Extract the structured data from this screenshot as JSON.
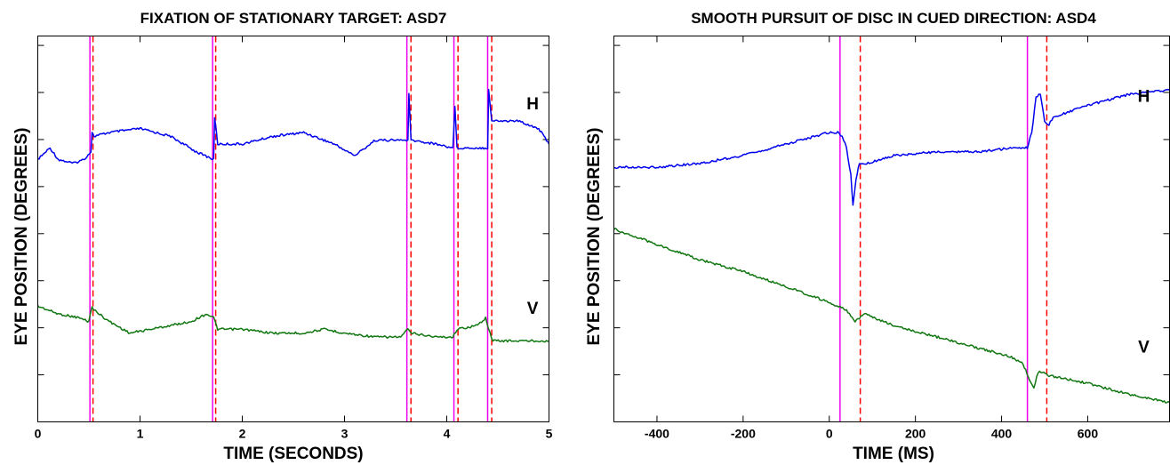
{
  "chart_data": [
    {
      "type": "line",
      "title": "FIXATION OF STATIONARY TARGET:  ASD7",
      "xlabel": "TIME (SECONDS)",
      "ylabel": "EYE POSITION (DEGREES)",
      "xlim": [
        0,
        5
      ],
      "ylim": [
        0,
        100
      ],
      "xticks": [
        0,
        1,
        2,
        3,
        4,
        5
      ],
      "xtick_labels": [
        "0",
        "1",
        "2",
        "3",
        "4",
        "5"
      ],
      "y_tick_count": 8,
      "grid": false,
      "series": [
        {
          "name": "H",
          "color": "#0000ee",
          "x": [
            0,
            0.12,
            0.2,
            0.35,
            0.45,
            0.52,
            0.53,
            0.55,
            0.7,
            1.0,
            1.3,
            1.55,
            1.72,
            1.73,
            1.76,
            2.0,
            2.3,
            2.6,
            2.9,
            3.1,
            3.3,
            3.55,
            3.62,
            3.63,
            3.65,
            3.9,
            4.06,
            4.08,
            4.1,
            4.3,
            4.4,
            4.41,
            4.44,
            4.7,
            4.9,
            5.0
          ],
          "y": [
            68,
            71,
            68,
            67,
            68,
            70,
            75,
            74,
            75,
            76,
            74,
            70,
            68,
            79,
            72,
            72,
            74,
            75,
            72,
            69,
            73,
            73,
            73,
            85,
            73,
            72,
            71,
            82,
            71,
            71,
            71,
            86,
            78,
            78,
            76,
            72
          ]
        },
        {
          "name": "V",
          "color": "#117711",
          "x": [
            0,
            0.2,
            0.4,
            0.5,
            0.53,
            0.55,
            0.7,
            0.9,
            1.1,
            1.3,
            1.5,
            1.65,
            1.72,
            1.76,
            2.0,
            2.3,
            2.6,
            2.8,
            3.0,
            3.3,
            3.55,
            3.62,
            3.65,
            3.9,
            4.06,
            4.1,
            4.3,
            4.38,
            4.41,
            4.45,
            4.7,
            5.0
          ],
          "y": [
            30,
            28,
            27,
            26,
            30,
            29,
            26,
            23,
            24,
            25,
            26,
            28,
            27,
            24,
            24,
            23,
            23,
            24,
            23,
            22,
            22,
            24,
            23,
            22,
            22,
            24,
            25,
            27,
            24,
            21,
            21,
            21
          ]
        }
      ],
      "series_labels": [
        {
          "text": "H",
          "x": 4.84,
          "y": 81
        },
        {
          "text": "V",
          "x": 4.84,
          "y": 28
        }
      ],
      "markers": [
        {
          "x": 0.51,
          "style": "solid",
          "color": "#ee00ee"
        },
        {
          "x": 0.54,
          "style": "dashed",
          "color": "#ff0000"
        },
        {
          "x": 1.71,
          "style": "solid",
          "color": "#ee00ee"
        },
        {
          "x": 1.74,
          "style": "dashed",
          "color": "#ff0000"
        },
        {
          "x": 3.61,
          "style": "solid",
          "color": "#ee00ee"
        },
        {
          "x": 3.65,
          "style": "dashed",
          "color": "#ff0000"
        },
        {
          "x": 4.07,
          "style": "solid",
          "color": "#ee00ee"
        },
        {
          "x": 4.11,
          "style": "dashed",
          "color": "#ff0000"
        },
        {
          "x": 4.4,
          "style": "solid",
          "color": "#ee00ee"
        },
        {
          "x": 4.44,
          "style": "dashed",
          "color": "#ff0000"
        }
      ]
    },
    {
      "type": "line",
      "title": "SMOOTH PURSUIT OF DISC IN CUED DIRECTION:  ASD4",
      "xlabel": "TIME (MS)",
      "ylabel": "EYE POSITION (DEGREES)",
      "xlim": [
        -500,
        790
      ],
      "ylim": [
        0,
        100
      ],
      "xticks": [
        -400,
        -200,
        0,
        200,
        400,
        600
      ],
      "xtick_labels": [
        "-400",
        "-200",
        "0",
        "200",
        "400",
        "600"
      ],
      "y_tick_count": 8,
      "grid": false,
      "series": [
        {
          "name": "H",
          "color": "#0000ee",
          "x": [
            -500,
            -400,
            -300,
            -200,
            -100,
            0,
            20,
            30,
            40,
            50,
            55,
            62,
            70,
            90,
            150,
            250,
            350,
            420,
            460,
            470,
            480,
            490,
            500,
            510,
            520,
            600,
            700,
            790
          ],
          "y": [
            66,
            66,
            67,
            69,
            72,
            75,
            75,
            74,
            71,
            64,
            56,
            63,
            67,
            67,
            69,
            70,
            70,
            71,
            71,
            75,
            84,
            85,
            78,
            77,
            79,
            82,
            85,
            86
          ]
        },
        {
          "name": "V",
          "color": "#117711",
          "x": [
            -500,
            -400,
            -300,
            -200,
            -100,
            0,
            40,
            60,
            80,
            150,
            250,
            350,
            420,
            450,
            465,
            475,
            485,
            495,
            510,
            600,
            700,
            790
          ],
          "y": [
            50,
            46,
            42,
            39,
            35,
            31,
            29,
            26,
            28,
            25,
            22,
            19,
            17,
            15,
            11,
            9,
            13,
            13,
            12,
            10,
            7,
            5
          ]
        }
      ],
      "series_labels": [
        {
          "text": "H",
          "x": 730,
          "y": 83
        },
        {
          "text": "V",
          "x": 730,
          "y": 18
        }
      ],
      "markers": [
        {
          "x": 25,
          "style": "solid",
          "color": "#ee00ee"
        },
        {
          "x": 72,
          "style": "dashed",
          "color": "#ff0000"
        },
        {
          "x": 460,
          "style": "solid",
          "color": "#ee00ee"
        },
        {
          "x": 505,
          "style": "dashed",
          "color": "#ff0000"
        }
      ]
    }
  ]
}
